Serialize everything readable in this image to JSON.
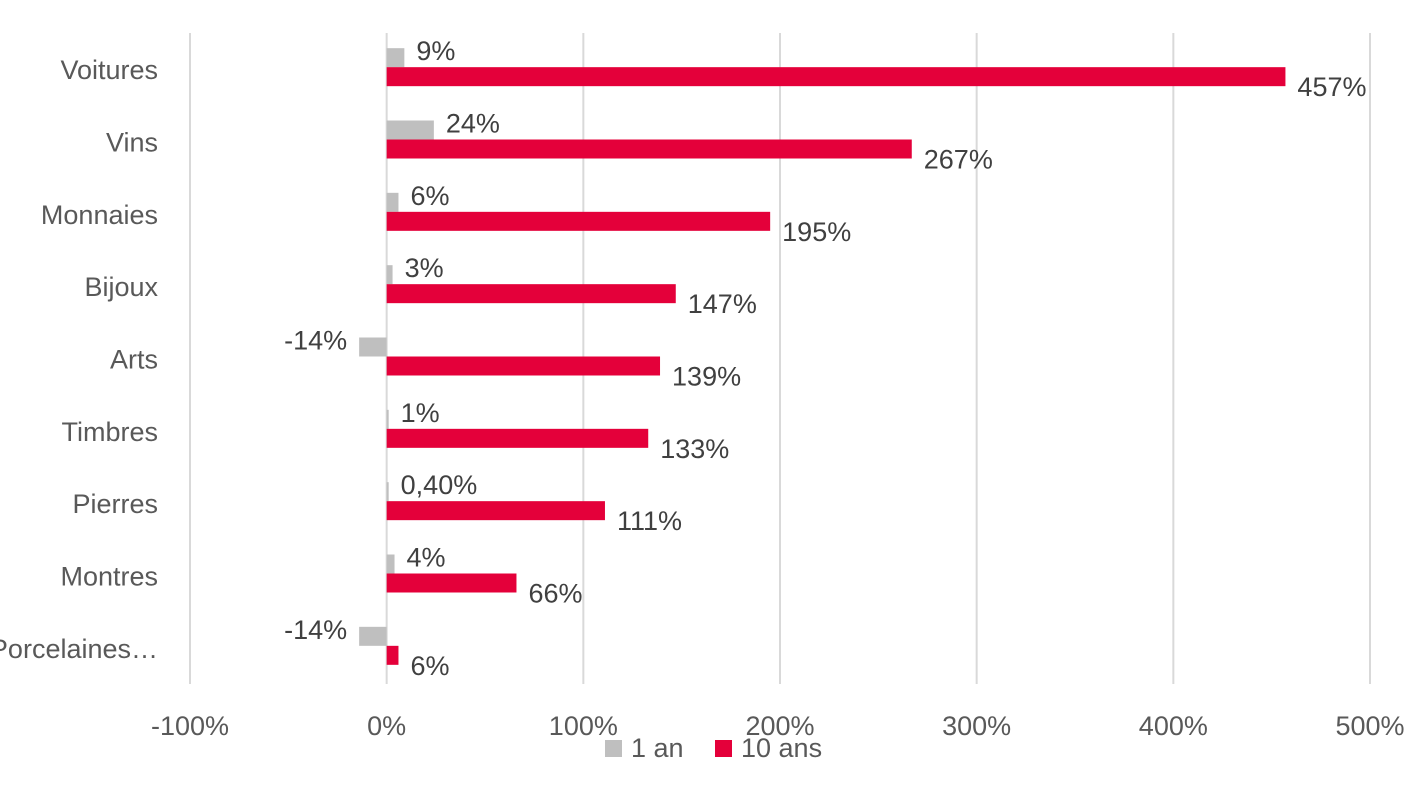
{
  "chart_data": {
    "type": "bar",
    "orientation": "horizontal",
    "categories": [
      "Voitures",
      "Vins",
      "Monnaies",
      "Bijoux",
      "Arts",
      "Timbres",
      "Pierres",
      "Montres",
      "Porcelaines…"
    ],
    "series": [
      {
        "name": "1 an",
        "color": "#bfbfbf",
        "values": [
          9,
          24,
          6,
          3,
          -14,
          1,
          0.4,
          4,
          -14
        ],
        "labels": [
          "9%",
          "24%",
          "6%",
          "3%",
          "-14%",
          "1%",
          "0,40%",
          "4%",
          "-14%"
        ]
      },
      {
        "name": "10 ans",
        "color": "#e4003a",
        "values": [
          457,
          267,
          195,
          147,
          139,
          133,
          111,
          66,
          6
        ],
        "labels": [
          "457%",
          "267%",
          "195%",
          "147%",
          "139%",
          "133%",
          "111%",
          "66%",
          "6%"
        ]
      }
    ],
    "xlim": [
      -100,
      500
    ],
    "xticks": [
      -100,
      0,
      100,
      200,
      300,
      400,
      500
    ],
    "xtick_labels": [
      "-100%",
      "0%",
      "100%",
      "200%",
      "300%",
      "400%",
      "500%"
    ],
    "grid": "vertical",
    "legend": "bottom",
    "title": "",
    "xlabel": "",
    "ylabel": ""
  }
}
